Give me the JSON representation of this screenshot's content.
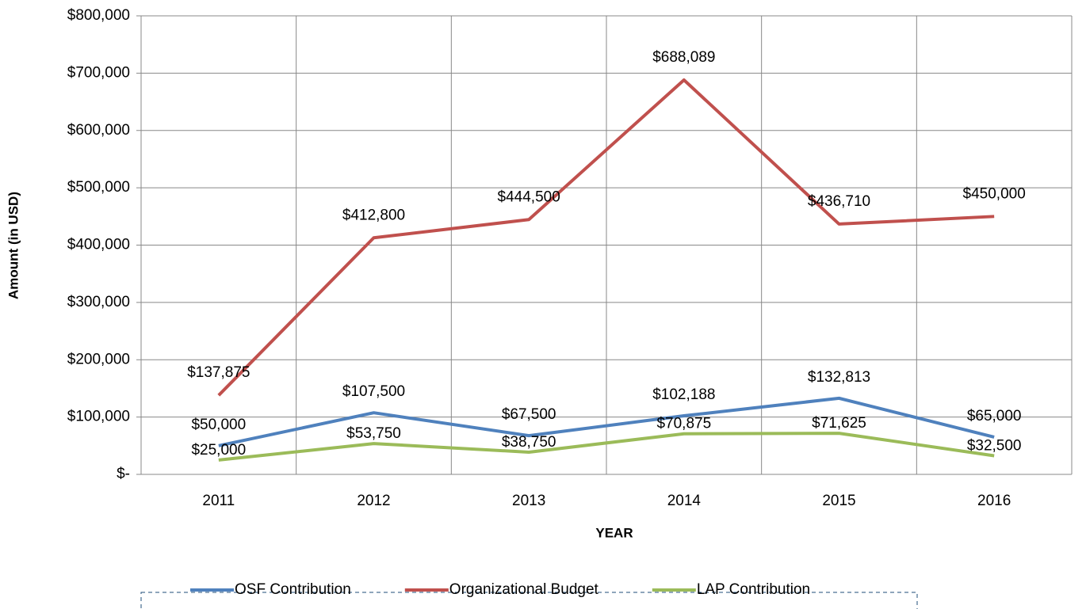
{
  "chart_data": {
    "type": "line",
    "x_label": "YEAR",
    "y_label": "Amount (in USD)",
    "categories": [
      "2011",
      "2012",
      "2013",
      "2014",
      "2015",
      "2016"
    ],
    "series": [
      {
        "name": "OSF Contribution",
        "color": "#4f81bd",
        "values": [
          50000,
          107500,
          67500,
          102188,
          132813,
          65000
        ],
        "value_labels": [
          "$50,000",
          "$107,500",
          "$67,500",
          "$102,188",
          "$132,813",
          "$65,000"
        ]
      },
      {
        "name": "Organizational Budget",
        "color": "#c0504d",
        "values": [
          137875,
          412800,
          444500,
          688089,
          436710,
          450000
        ],
        "value_labels": [
          "$137,875",
          "$412,800",
          "$444,500",
          "$688,089",
          "$436,710",
          "$450,000"
        ]
      },
      {
        "name": "LAP Contribution",
        "color": "#9bbb59",
        "values": [
          25000,
          53750,
          38750,
          70875,
          71625,
          32500
        ],
        "value_labels": [
          "$25,000",
          "$53,750",
          "$38,750",
          "$70,875",
          "$71,625",
          "$32,500"
        ]
      }
    ],
    "ylim": [
      0,
      800000
    ],
    "yticks": [
      {
        "value": 0,
        "label": "$-"
      },
      {
        "value": 100000,
        "label": "$100,000"
      },
      {
        "value": 200000,
        "label": "$200,000"
      },
      {
        "value": 300000,
        "label": "$300,000"
      },
      {
        "value": 400000,
        "label": "$400,000"
      },
      {
        "value": 500000,
        "label": "$500,000"
      },
      {
        "value": 600000,
        "label": "$600,000"
      },
      {
        "value": 700000,
        "label": "$700,000"
      },
      {
        "value": 800000,
        "label": "$800,000"
      }
    ],
    "grid": true,
    "legend": "bottom"
  }
}
